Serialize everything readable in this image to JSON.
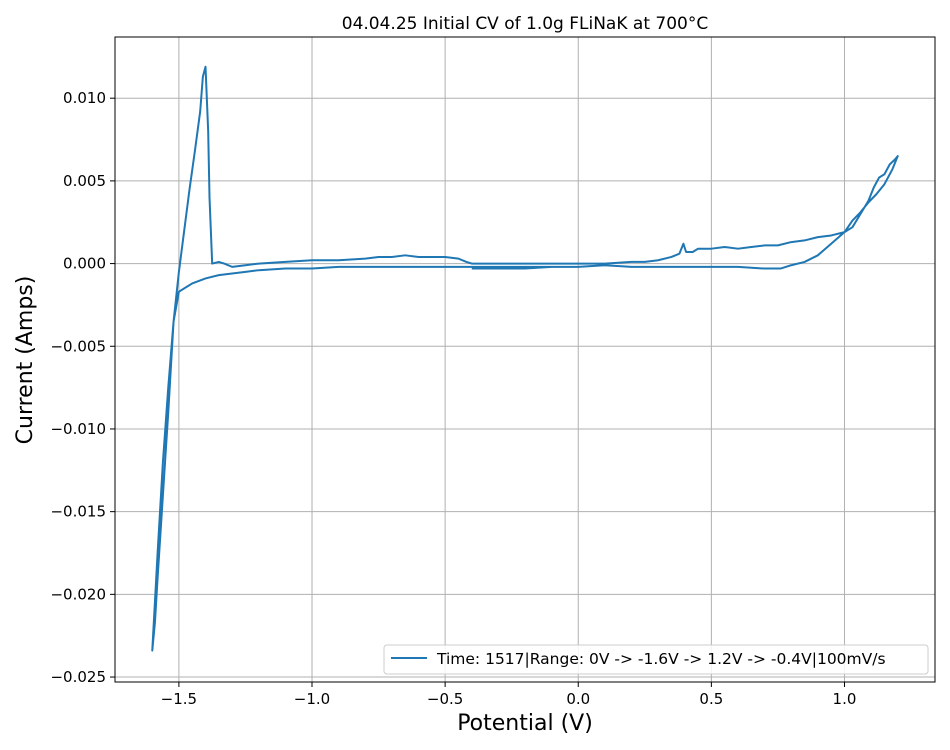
{
  "chart_data": {
    "type": "line",
    "title": "04.04.25 Initial CV of 1.0g FLiNaK at 700°C",
    "xlabel": "Potential (V)",
    "ylabel": "Current (Amps)",
    "xlim": [
      -1.74,
      1.34
    ],
    "ylim": [
      -0.0253,
      0.0137
    ],
    "x_ticks": [
      -1.5,
      -1.0,
      -0.5,
      0.0,
      0.5,
      1.0
    ],
    "x_tick_labels": [
      "−1.5",
      "−1.0",
      "−0.5",
      "0.0",
      "0.5",
      "1.0"
    ],
    "y_ticks": [
      -0.025,
      -0.02,
      -0.015,
      -0.01,
      -0.005,
      0.0,
      0.005,
      0.01
    ],
    "y_tick_labels": [
      "−0.025",
      "−0.020",
      "−0.015",
      "−0.010",
      "−0.005",
      "0.000",
      "0.005",
      "0.010"
    ],
    "grid": true,
    "legend_position": "lower-right",
    "series": [
      {
        "name": "Time: 1517|Range: 0V -> -1.6V -> 1.2V -> -0.4V|100mV/s",
        "color": "#1f77b4",
        "points": [
          [
            0.0,
            -0.0002
          ],
          [
            -0.1,
            -0.0002
          ],
          [
            -0.2,
            -0.0002
          ],
          [
            -0.3,
            -0.0002
          ],
          [
            -0.4,
            -0.0002
          ],
          [
            -0.5,
            -0.0002
          ],
          [
            -0.6,
            -0.0002
          ],
          [
            -0.7,
            -0.0002
          ],
          [
            -0.8,
            -0.0002
          ],
          [
            -0.9,
            -0.0002
          ],
          [
            -1.0,
            -0.0003
          ],
          [
            -1.1,
            -0.0003
          ],
          [
            -1.2,
            -0.0004
          ],
          [
            -1.25,
            -0.0005
          ],
          [
            -1.3,
            -0.0006
          ],
          [
            -1.35,
            -0.0007
          ],
          [
            -1.4,
            -0.0009
          ],
          [
            -1.45,
            -0.0012
          ],
          [
            -1.48,
            -0.0015
          ],
          [
            -1.5,
            -0.0017
          ],
          [
            -1.52,
            -0.0035
          ],
          [
            -1.54,
            -0.009
          ],
          [
            -1.56,
            -0.014
          ],
          [
            -1.58,
            -0.019
          ],
          [
            -1.59,
            -0.0217
          ],
          [
            -1.6,
            -0.0234
          ],
          [
            -1.58,
            -0.0175
          ],
          [
            -1.56,
            -0.012
          ],
          [
            -1.54,
            -0.0075
          ],
          [
            -1.52,
            -0.0035
          ],
          [
            -1.5,
            -0.0005
          ],
          [
            -1.48,
            0.002
          ],
          [
            -1.46,
            0.0045
          ],
          [
            -1.44,
            0.0068
          ],
          [
            -1.42,
            0.0092
          ],
          [
            -1.41,
            0.0113
          ],
          [
            -1.4,
            0.0119
          ],
          [
            -1.39,
            0.008
          ],
          [
            -1.385,
            0.004
          ],
          [
            -1.375,
            0.0
          ],
          [
            -1.35,
            0.0001
          ],
          [
            -1.33,
            0.0
          ],
          [
            -1.3,
            -0.0002
          ],
          [
            -1.25,
            -0.0001
          ],
          [
            -1.2,
            0.0
          ],
          [
            -1.1,
            0.0001
          ],
          [
            -1.0,
            0.0002
          ],
          [
            -0.9,
            0.0002
          ],
          [
            -0.8,
            0.0003
          ],
          [
            -0.75,
            0.0004
          ],
          [
            -0.7,
            0.0004
          ],
          [
            -0.65,
            0.0005
          ],
          [
            -0.6,
            0.0004
          ],
          [
            -0.5,
            0.0004
          ],
          [
            -0.45,
            0.0003
          ],
          [
            -0.42,
            0.0001
          ],
          [
            -0.4,
            0.0
          ],
          [
            -0.3,
            0.0
          ],
          [
            -0.2,
            0.0
          ],
          [
            -0.1,
            0.0
          ],
          [
            0.0,
            0.0
          ],
          [
            0.1,
            0.0
          ],
          [
            0.2,
            0.0001
          ],
          [
            0.25,
            0.0001
          ],
          [
            0.3,
            0.0002
          ],
          [
            0.35,
            0.0004
          ],
          [
            0.38,
            0.0006
          ],
          [
            0.395,
            0.0012
          ],
          [
            0.405,
            0.0007
          ],
          [
            0.43,
            0.0007
          ],
          [
            0.45,
            0.0009
          ],
          [
            0.5,
            0.0009
          ],
          [
            0.55,
            0.001
          ],
          [
            0.6,
            0.0009
          ],
          [
            0.65,
            0.001
          ],
          [
            0.7,
            0.0011
          ],
          [
            0.75,
            0.0011
          ],
          [
            0.8,
            0.0013
          ],
          [
            0.85,
            0.0014
          ],
          [
            0.9,
            0.0016
          ],
          [
            0.95,
            0.0017
          ],
          [
            1.0,
            0.0019
          ],
          [
            1.03,
            0.0022
          ],
          [
            1.06,
            0.003
          ],
          [
            1.09,
            0.0038
          ],
          [
            1.11,
            0.0046
          ],
          [
            1.13,
            0.0052
          ],
          [
            1.15,
            0.0054
          ],
          [
            1.17,
            0.006
          ],
          [
            1.19,
            0.0063
          ],
          [
            1.2,
            0.0065
          ],
          [
            1.18,
            0.0057
          ],
          [
            1.15,
            0.0048
          ],
          [
            1.12,
            0.0042
          ],
          [
            1.09,
            0.0037
          ],
          [
            1.06,
            0.0031
          ],
          [
            1.03,
            0.0026
          ],
          [
            1.0,
            0.0019
          ],
          [
            0.95,
            0.0012
          ],
          [
            0.9,
            0.0005
          ],
          [
            0.85,
            0.0001
          ],
          [
            0.8,
            -0.0001
          ],
          [
            0.76,
            -0.0003
          ],
          [
            0.7,
            -0.0003
          ],
          [
            0.6,
            -0.0002
          ],
          [
            0.5,
            -0.0002
          ],
          [
            0.4,
            -0.0002
          ],
          [
            0.3,
            -0.0002
          ],
          [
            0.2,
            -0.0002
          ],
          [
            0.1,
            -0.0001
          ],
          [
            0.0,
            -0.0002
          ],
          [
            -0.1,
            -0.0002
          ],
          [
            -0.2,
            -0.0003
          ],
          [
            -0.3,
            -0.0003
          ],
          [
            -0.4,
            -0.0003
          ]
        ]
      }
    ]
  }
}
